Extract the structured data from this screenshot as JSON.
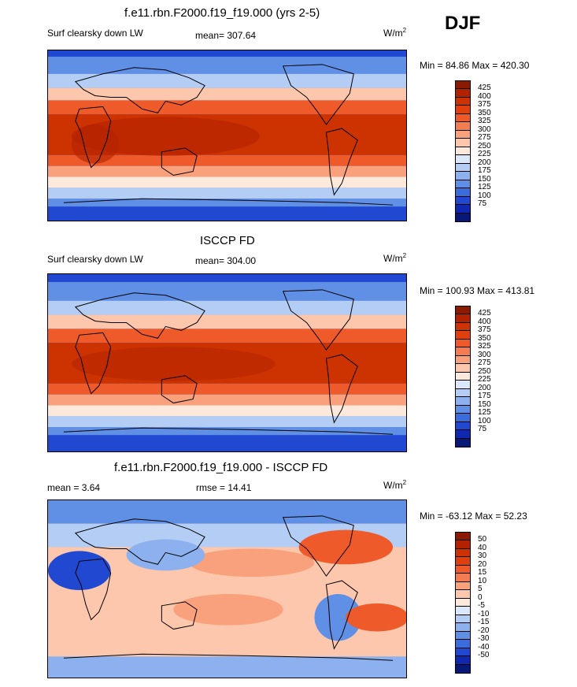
{
  "season": "DJF",
  "panels": [
    {
      "title": "f.e11.rbn.F2000.f19_f19.000 (yrs 2-5)",
      "left": "Surf clearsky down LW",
      "center": "mean= 307.64",
      "units": "W/m",
      "units_sup": "2",
      "minmax": "Min =  84.86 Max = 420.30",
      "scale": "abs"
    },
    {
      "title": "ISCCP FD",
      "left": "Surf clearsky down LW",
      "center": "mean= 304.00",
      "units": "W/m",
      "units_sup": "2",
      "minmax": "Min = 100.93 Max = 413.81",
      "scale": "abs"
    },
    {
      "title": "f.e11.rbn.F2000.f19_f19.000 - ISCCP FD",
      "left": "mean =   3.64",
      "center": "rmse =  14.41",
      "units": "W/m",
      "units_sup": "2",
      "minmax": "Min = -63.12 Max =  52.23",
      "scale": "diff"
    }
  ],
  "colorbar_abs": {
    "labels": [
      "425",
      "400",
      "375",
      "350",
      "325",
      "300",
      "275",
      "250",
      "225",
      "200",
      "175",
      "150",
      "125",
      "100",
      "75"
    ],
    "colors": [
      "#8b1a00",
      "#b22200",
      "#cc3300",
      "#e0400d",
      "#ef5a2a",
      "#f47c52",
      "#f9a07c",
      "#fcc7ac",
      "#fde9dc",
      "#dbe7fa",
      "#b4cdf4",
      "#8cb1ee",
      "#6090e6",
      "#3a6cdc",
      "#2048d0",
      "#1028b0",
      "#081878"
    ]
  },
  "colorbar_diff": {
    "labels": [
      "50",
      "40",
      "30",
      "20",
      "15",
      "10",
      "5",
      "0",
      "-5",
      "-10",
      "-15",
      "-20",
      "-30",
      "-40",
      "-50"
    ],
    "colors": [
      "#8b1a00",
      "#b22200",
      "#cc3300",
      "#e0400d",
      "#ef5a2a",
      "#f47c52",
      "#f9a07c",
      "#fcc7ac",
      "#fde9dc",
      "#dbe7fa",
      "#b4cdf4",
      "#8cb1ee",
      "#6090e6",
      "#3a6cdc",
      "#2048d0",
      "#1028b0",
      "#081878"
    ]
  }
}
